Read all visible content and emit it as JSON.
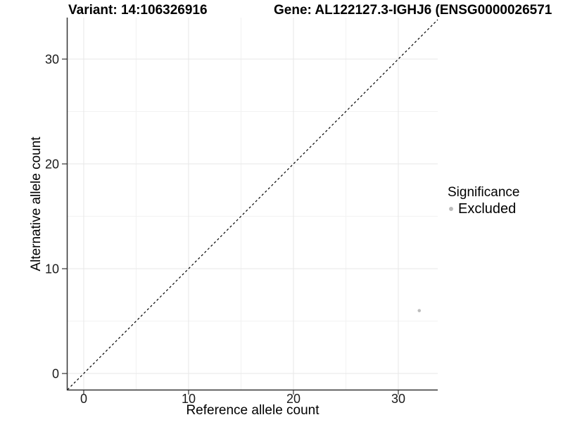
{
  "chart_data": {
    "type": "scatter",
    "titles": {
      "variant": "Variant: 14:106326916",
      "gene": "Gene: AL122127.3-IGHJ6 (ENSG0000026571"
    },
    "xlabel": "Reference allele count",
    "ylabel": "Alternative allele count",
    "xlim": [
      -1.54,
      33.76
    ],
    "ylim": [
      -1.54,
      33.96
    ],
    "xticks": [
      0,
      10,
      20,
      30
    ],
    "yticks": [
      0,
      10,
      20,
      30
    ],
    "xticks_minor": [
      5,
      15,
      25
    ],
    "yticks_minor": [
      5,
      15,
      25
    ],
    "grid": "major+minor",
    "series": [
      {
        "name": "Excluded",
        "color": "#bdbdbd",
        "points": [
          {
            "x": 32,
            "y": 6
          }
        ]
      }
    ],
    "reference_line": {
      "kind": "identity y=x",
      "style": "dashed",
      "color": "#000000"
    },
    "legend": {
      "title": "Significance",
      "position": "right",
      "items": [
        {
          "label": "Excluded",
          "color": "#bdbdbd"
        }
      ]
    }
  },
  "colors": {
    "background": "#ffffff",
    "axis": "#333333",
    "grid_major": "#e7e7e7",
    "grid_minor": "#f2f2f2",
    "tick_text": "#1a1a1a",
    "point": "#bdbdbd"
  }
}
